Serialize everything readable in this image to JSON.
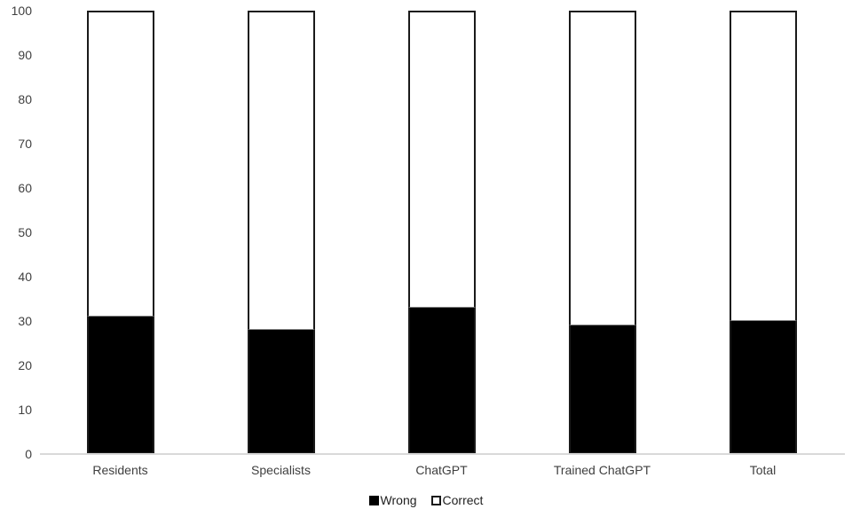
{
  "chart_data": {
    "type": "bar",
    "stacked": true,
    "title": "",
    "xlabel": "",
    "ylabel": "",
    "categories": [
      "Residents",
      "Specialists",
      "ChatGPT",
      "Trained ChatGPT",
      "Total"
    ],
    "series": [
      {
        "name": "Wrong",
        "color": "#000000",
        "values": [
          31,
          28,
          33,
          29,
          30
        ]
      },
      {
        "name": "Correct",
        "color": "#ffffff",
        "values": [
          69,
          72,
          67,
          71,
          70
        ]
      }
    ],
    "ylim": [
      0,
      100
    ],
    "yticks": [
      0,
      10,
      20,
      30,
      40,
      50,
      60,
      70,
      80,
      90,
      100
    ],
    "grid": false,
    "legend_position": "bottom"
  },
  "colors": {
    "background": "#ffffff",
    "bar_border": "#1a1a1a",
    "axis_line": "#d9d9d9",
    "tick_label": "#3f3f3f",
    "category_label": "#3f3f3f",
    "legend_label": "#1f1f1f",
    "wrong_fill": "#000000",
    "correct_fill": "#ffffff"
  }
}
